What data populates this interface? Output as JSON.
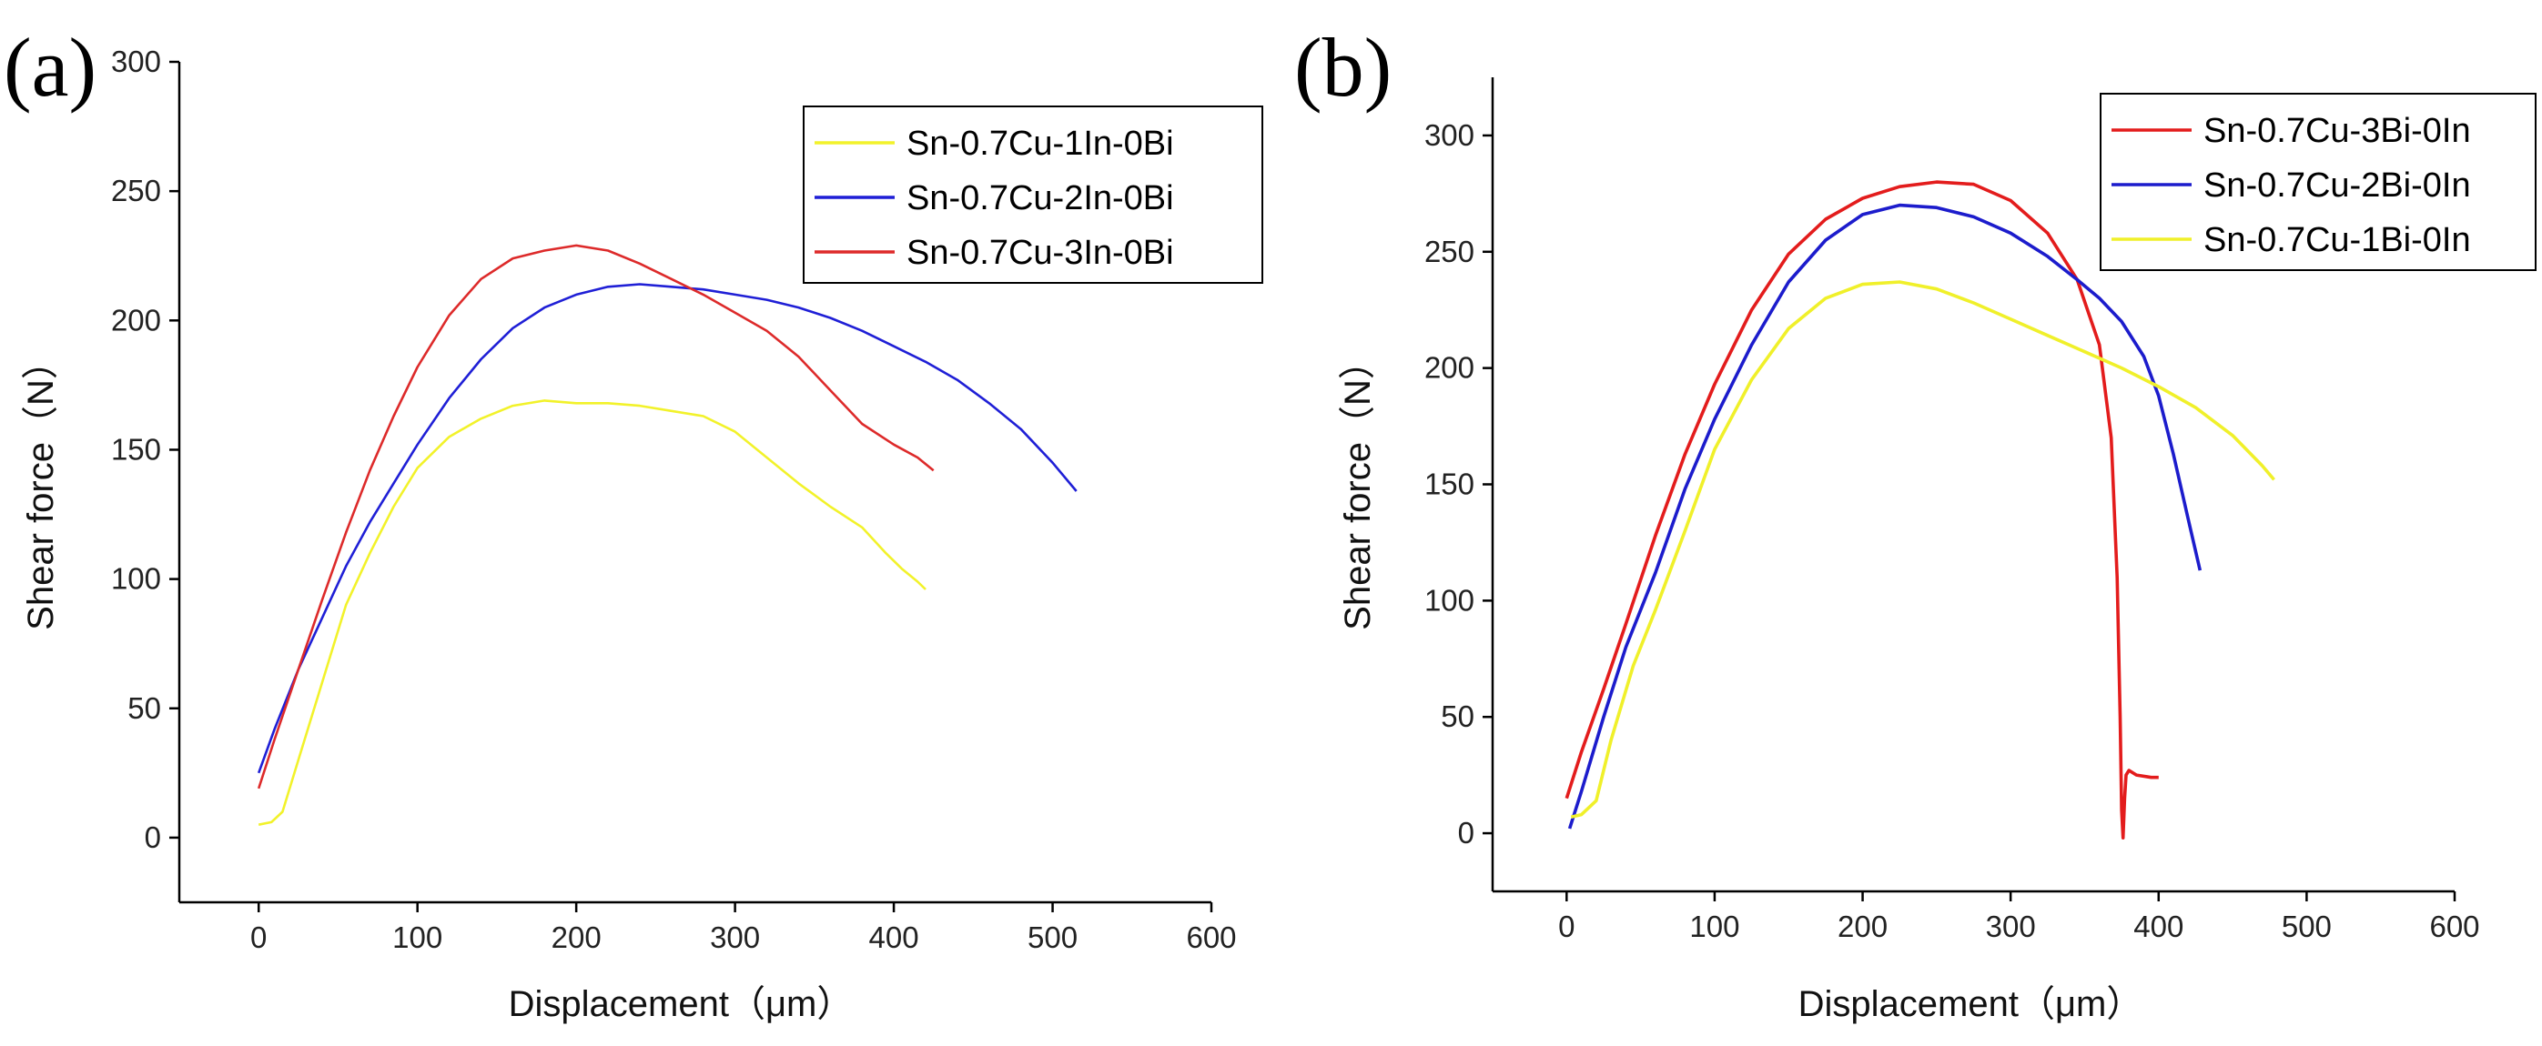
{
  "chart_data": [
    {
      "panel": "(a)",
      "type": "line",
      "xlabel": "Displacement（μm）",
      "ylabel": "Shear force（N）",
      "xlim": [
        -50,
        600
      ],
      "ylim": [
        -25,
        300
      ],
      "xticks": [
        0,
        100,
        200,
        300,
        400,
        500,
        600
      ],
      "yticks": [
        0,
        50,
        100,
        150,
        200,
        250,
        300
      ],
      "legend_position": "top-right",
      "series": [
        {
          "name": "Sn-0.7Cu-1In-0Bi",
          "color": "#f2f22a",
          "x": [
            0,
            8,
            15,
            25,
            40,
            55,
            70,
            85,
            100,
            120,
            140,
            160,
            180,
            200,
            220,
            240,
            260,
            280,
            300,
            320,
            340,
            360,
            380,
            395,
            405,
            415,
            420
          ],
          "y": [
            5,
            6,
            10,
            30,
            60,
            90,
            110,
            128,
            143,
            155,
            162,
            167,
            169,
            168,
            168,
            167,
            165,
            163,
            157,
            147,
            137,
            128,
            120,
            110,
            104,
            99,
            96
          ]
        },
        {
          "name": "Sn-0.7Cu-2In-0Bi",
          "color": "#1f1fd6",
          "x": [
            0,
            10,
            25,
            40,
            55,
            70,
            85,
            100,
            120,
            140,
            160,
            180,
            200,
            220,
            240,
            260,
            280,
            300,
            320,
            340,
            360,
            380,
            400,
            420,
            440,
            460,
            480,
            500,
            515
          ],
          "y": [
            25,
            42,
            65,
            85,
            105,
            122,
            137,
            152,
            170,
            185,
            197,
            205,
            210,
            213,
            214,
            213,
            212,
            210,
            208,
            205,
            201,
            196,
            190,
            184,
            177,
            168,
            158,
            145,
            134
          ]
        },
        {
          "name": "Sn-0.7Cu-3In-0Bi",
          "color": "#dd2a2a",
          "x": [
            0,
            10,
            25,
            40,
            55,
            70,
            85,
            100,
            120,
            140,
            160,
            180,
            200,
            220,
            240,
            260,
            280,
            300,
            320,
            340,
            360,
            380,
            400,
            415,
            425
          ],
          "y": [
            19,
            38,
            65,
            92,
            118,
            142,
            163,
            182,
            202,
            216,
            224,
            227,
            229,
            227,
            222,
            216,
            210,
            203,
            196,
            186,
            173,
            160,
            152,
            147,
            142
          ]
        }
      ]
    },
    {
      "panel": "(b)",
      "type": "line",
      "xlabel": "Displacement（μm）",
      "ylabel": "Shear force（N）",
      "xlim": [
        -50,
        600
      ],
      "ylim": [
        -25,
        325
      ],
      "xticks": [
        0,
        100,
        200,
        300,
        400,
        500,
        600
      ],
      "yticks": [
        0,
        50,
        100,
        150,
        200,
        250,
        300
      ],
      "legend_position": "top-right",
      "series": [
        {
          "name": "Sn-0.7Cu-3Bi-0In",
          "color": "#e31c1c",
          "x": [
            0,
            10,
            25,
            40,
            60,
            80,
            100,
            125,
            150,
            175,
            200,
            225,
            250,
            275,
            300,
            325,
            345,
            360,
            368,
            372,
            374,
            375,
            376,
            377,
            378,
            380,
            385,
            395,
            400
          ],
          "y": [
            15,
            35,
            62,
            90,
            128,
            163,
            193,
            225,
            249,
            264,
            273,
            278,
            280,
            279,
            272,
            258,
            238,
            210,
            170,
            110,
            50,
            10,
            -2,
            15,
            25,
            27,
            25,
            24,
            24
          ]
        },
        {
          "name": "Sn-0.7Cu-2Bi-0In",
          "color": "#1c1ccc",
          "x": [
            2,
            10,
            25,
            40,
            60,
            80,
            100,
            125,
            150,
            175,
            200,
            225,
            250,
            275,
            300,
            325,
            345,
            360,
            375,
            390,
            400,
            410,
            420,
            428
          ],
          "y": [
            2,
            18,
            50,
            80,
            112,
            148,
            178,
            210,
            237,
            255,
            266,
            270,
            269,
            265,
            258,
            248,
            238,
            230,
            220,
            205,
            188,
            163,
            135,
            113
          ]
        },
        {
          "name": "Sn-0.7Cu-1Bi-0In",
          "color": "#f0f02a",
          "x": [
            3,
            10,
            20,
            30,
            45,
            60,
            80,
            100,
            125,
            150,
            175,
            200,
            225,
            250,
            275,
            300,
            325,
            350,
            375,
            400,
            425,
            450,
            470,
            478
          ],
          "y": [
            7,
            8,
            14,
            40,
            72,
            96,
            130,
            165,
            195,
            217,
            230,
            236,
            237,
            234,
            228,
            221,
            214,
            207,
            200,
            192,
            183,
            171,
            158,
            152
          ]
        }
      ]
    }
  ]
}
